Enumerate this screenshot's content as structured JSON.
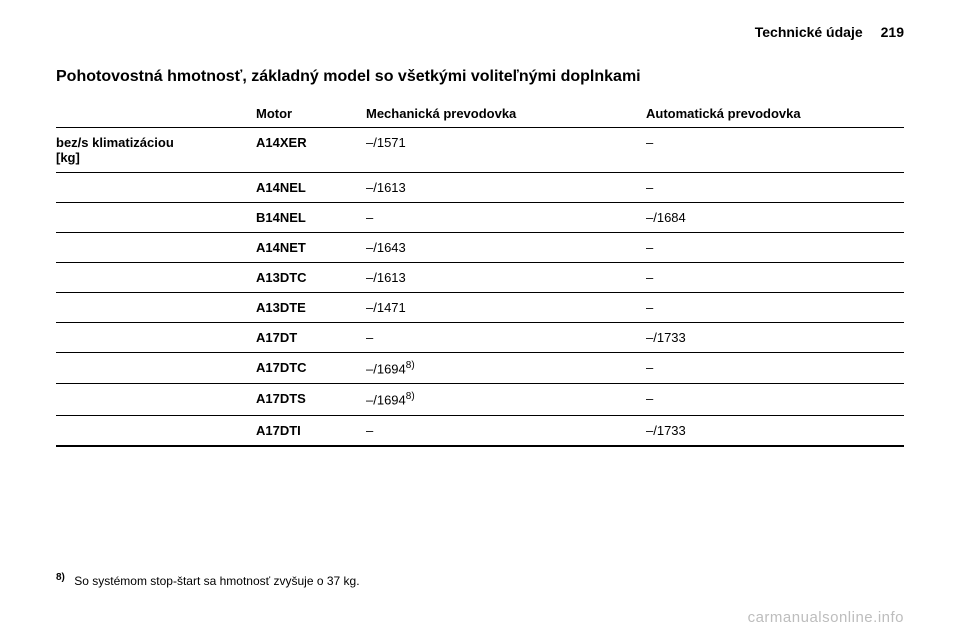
{
  "header": {
    "title": "Technické údaje",
    "page": "219"
  },
  "section_title": "Pohotovostná hmotnosť, základný model so všetkými voliteľnými doplnkami",
  "table": {
    "columns": {
      "label": "",
      "motor": "Motor",
      "mech": "Mechanická prevodovka",
      "auto": "Automatická prevodovka"
    },
    "row_label_line1": "bez/s klimatizáciou",
    "row_label_line2": "[kg]",
    "rows": [
      {
        "motor": "A14XER",
        "mech": "–/1571",
        "auto": "–"
      },
      {
        "motor": "A14NEL",
        "mech": "–/1613",
        "auto": "–"
      },
      {
        "motor": "B14NEL",
        "mech": "–",
        "auto": "–/1684"
      },
      {
        "motor": "A14NET",
        "mech": "–/1643",
        "auto": "–"
      },
      {
        "motor": "A13DTC",
        "mech": "–/1613",
        "auto": "–"
      },
      {
        "motor": "A13DTE",
        "mech": "–/1471",
        "auto": "–"
      },
      {
        "motor": "A17DT",
        "mech": "–",
        "auto": "–/1733"
      },
      {
        "motor": "A17DTC",
        "mech": "–/1694",
        "mech_sup": "8)",
        "auto": "–"
      },
      {
        "motor": "A17DTS",
        "mech": "–/1694",
        "mech_sup": "8)",
        "auto": "–"
      },
      {
        "motor": "A17DTI",
        "mech": "–",
        "auto": "–/1733"
      }
    ]
  },
  "footnote": {
    "marker": "8)",
    "text": "So systémom stop-štart sa hmotnosť zvyšuje o 37 kg."
  },
  "watermark": "carmanualsonline.info"
}
